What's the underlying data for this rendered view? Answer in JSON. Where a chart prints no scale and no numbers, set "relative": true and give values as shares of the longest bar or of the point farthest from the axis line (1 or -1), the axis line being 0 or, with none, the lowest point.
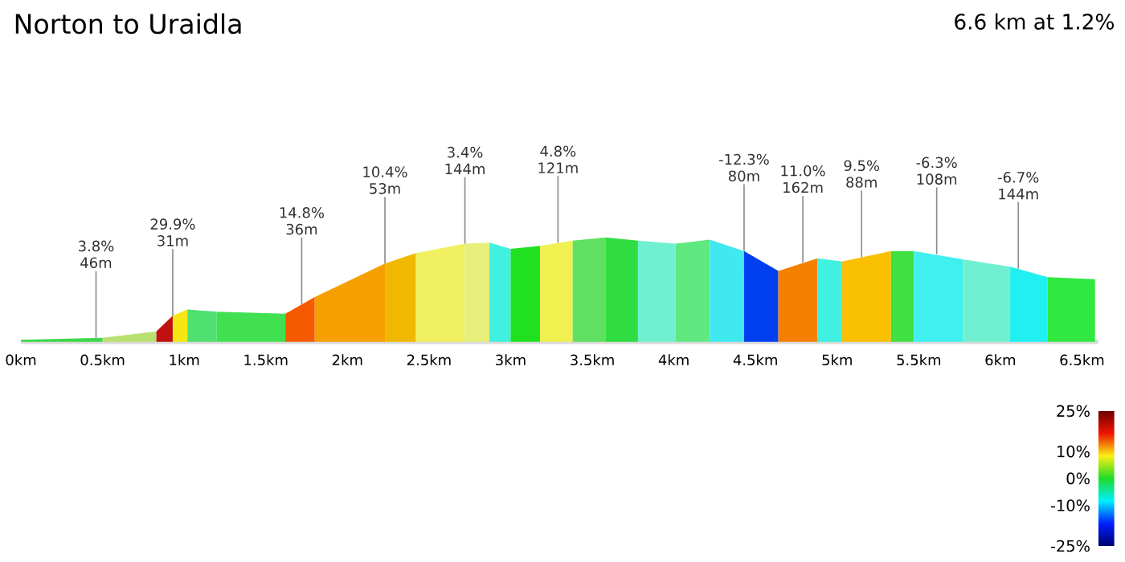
{
  "chart_data": {
    "type": "area",
    "title": "Norton to Uraidla",
    "subtitle": "6.6 km at 1.2%",
    "relative": true,
    "xlim": [
      0,
      6.6
    ],
    "xticks": [
      {
        "value": 0,
        "label": "0km"
      },
      {
        "value": 0.5,
        "label": "0.5km"
      },
      {
        "value": 1,
        "label": "1km"
      },
      {
        "value": 1.5,
        "label": "1.5km"
      },
      {
        "value": 2,
        "label": "2km"
      },
      {
        "value": 2.5,
        "label": "2.5km"
      },
      {
        "value": 3,
        "label": "3km"
      },
      {
        "value": 3.5,
        "label": "3.5km"
      },
      {
        "value": 4,
        "label": "4km"
      },
      {
        "value": 4.5,
        "label": "4.5km"
      },
      {
        "value": 5,
        "label": "5km"
      },
      {
        "value": 5.5,
        "label": "5.5km"
      },
      {
        "value": 6,
        "label": "6km"
      },
      {
        "value": 6.5,
        "label": "6.5km"
      }
    ],
    "series": [
      {
        "x": [
          0,
          0.5
        ],
        "values": [
          0.02,
          0.04
        ],
        "color": "#3cd84a"
      },
      {
        "x": [
          0.5,
          0.83
        ],
        "values": [
          0.04,
          0.1
        ],
        "color": "#b8e070"
      },
      {
        "x": [
          0.83,
          0.93
        ],
        "values": [
          0.1,
          0.25
        ],
        "color": "#c01010"
      },
      {
        "x": [
          0.93,
          1.02
        ],
        "values": [
          0.25,
          0.31
        ],
        "color": "#f5e614"
      },
      {
        "x": [
          1.02,
          1.2
        ],
        "values": [
          0.31,
          0.29
        ],
        "color": "#50e070"
      },
      {
        "x": [
          1.2,
          1.62
        ],
        "values": [
          0.29,
          0.27
        ],
        "color": "#40e050"
      },
      {
        "x": [
          1.62,
          1.8
        ],
        "values": [
          0.27,
          0.43
        ],
        "color": "#f55a00"
      },
      {
        "x": [
          1.8,
          2.23
        ],
        "values": [
          0.43,
          0.75
        ],
        "color": "#f5a000"
      },
      {
        "x": [
          2.23,
          2.42
        ],
        "values": [
          0.75,
          0.85
        ],
        "color": "#f0b800"
      },
      {
        "x": [
          2.42,
          2.72
        ],
        "values": [
          0.85,
          0.94
        ],
        "color": "#f0f060"
      },
      {
        "x": [
          2.72,
          2.87
        ],
        "values": [
          0.94,
          0.95
        ],
        "color": "#e6f07a"
      },
      {
        "x": [
          2.87,
          3.0
        ],
        "values": [
          0.95,
          0.89
        ],
        "color": "#40f0e0"
      },
      {
        "x": [
          3.0,
          3.18
        ],
        "values": [
          0.89,
          0.92
        ],
        "color": "#20e020"
      },
      {
        "x": [
          3.18,
          3.38
        ],
        "values": [
          0.92,
          0.97
        ],
        "color": "#f0f050"
      },
      {
        "x": [
          3.38,
          3.58
        ],
        "values": [
          0.97,
          1.0
        ],
        "color": "#60e060"
      },
      {
        "x": [
          3.58,
          3.78
        ],
        "values": [
          1.0,
          0.97
        ],
        "color": "#30dd40"
      },
      {
        "x": [
          3.78,
          4.01
        ],
        "values": [
          0.97,
          0.94
        ],
        "color": "#70f0d0"
      },
      {
        "x": [
          4.01,
          4.22
        ],
        "values": [
          0.94,
          0.98
        ],
        "color": "#60e880"
      },
      {
        "x": [
          4.22,
          4.43
        ],
        "values": [
          0.98,
          0.87
        ],
        "color": "#40e8f0"
      },
      {
        "x": [
          4.43,
          4.64
        ],
        "values": [
          0.87,
          0.68
        ],
        "color": "#0040f0"
      },
      {
        "x": [
          4.64,
          4.88
        ],
        "values": [
          0.68,
          0.8
        ],
        "color": "#f58000"
      },
      {
        "x": [
          4.88,
          5.03
        ],
        "values": [
          0.8,
          0.77
        ],
        "color": "#40f0e0"
      },
      {
        "x": [
          5.03,
          5.33
        ],
        "values": [
          0.77,
          0.87
        ],
        "color": "#f8c000"
      },
      {
        "x": [
          5.33,
          5.47
        ],
        "values": [
          0.87,
          0.87
        ],
        "color": "#40e040"
      },
      {
        "x": [
          5.47,
          5.77
        ],
        "values": [
          0.87,
          0.79
        ],
        "color": "#40f0f0"
      },
      {
        "x": [
          5.77,
          6.06
        ],
        "values": [
          0.79,
          0.72
        ],
        "color": "#70f0d0"
      },
      {
        "x": [
          6.06,
          6.29
        ],
        "values": [
          0.72,
          0.62
        ],
        "color": "#20f0f0"
      },
      {
        "x": [
          6.29,
          6.58
        ],
        "values": [
          0.62,
          0.6
        ],
        "color": "#30e840"
      }
    ],
    "annotations": [
      {
        "text": "3.8% 46m",
        "x": 0.46,
        "y": 0.04
      },
      {
        "text": "29.9% 31m",
        "x": 0.93,
        "y": 0.25
      },
      {
        "text": "14.8% 36m",
        "x": 1.72,
        "y": 0.36
      },
      {
        "text": "10.4% 53m",
        "x": 2.23,
        "y": 0.75
      },
      {
        "text": "3.4% 144m",
        "x": 2.72,
        "y": 0.94
      },
      {
        "text": "4.8% 121m",
        "x": 3.29,
        "y": 0.95
      },
      {
        "text": "-12.3% 80m",
        "x": 4.43,
        "y": 0.87
      },
      {
        "text": "11.0% 162m",
        "x": 4.79,
        "y": 0.76
      },
      {
        "text": "9.5% 88m",
        "x": 5.15,
        "y": 0.81
      },
      {
        "text": "-6.3% 108m",
        "x": 5.61,
        "y": 0.84
      },
      {
        "text": "-6.7% 144m",
        "x": 6.11,
        "y": 0.7
      }
    ],
    "clim": [
      -25,
      25
    ],
    "cticks": [
      {
        "value": -25,
        "label": "-25%"
      },
      {
        "value": -10,
        "label": "-10%"
      },
      {
        "value": 0,
        "label": "0%"
      },
      {
        "value": 10,
        "label": "10%"
      },
      {
        "value": 25,
        "label": "25%"
      }
    ]
  }
}
